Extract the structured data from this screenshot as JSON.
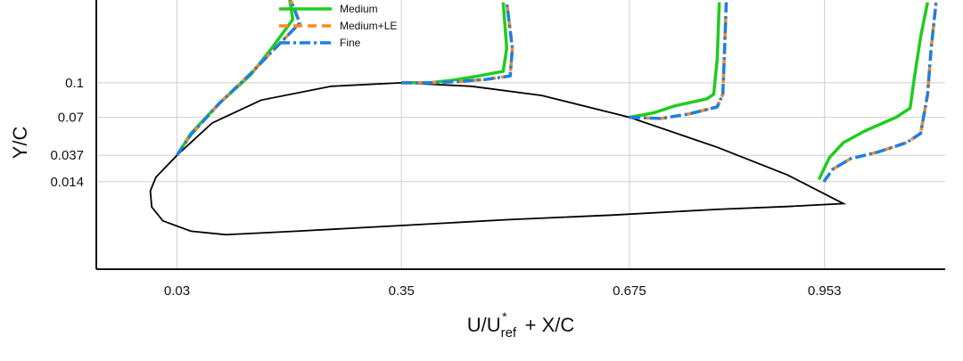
{
  "chart_data": {
    "type": "line",
    "title": "",
    "xlabel": {
      "base": "U/U",
      "sup": "*",
      "sub": "ref",
      "tail": " + X/C"
    },
    "ylabel": "Y/C",
    "xticks": [
      0.03,
      0.35,
      0.675,
      0.953
    ],
    "xtick_labels": [
      "0.03",
      "0.35",
      "0.675",
      "0.953"
    ],
    "yticks": [
      0.1,
      0.07,
      0.037,
      0.014
    ],
    "ytick_labels": [
      "0.1",
      "0.07",
      "0.037",
      "0.014"
    ],
    "xlim": [
      -0.085,
      1.125
    ],
    "ylim": [
      -0.062,
      0.172
    ],
    "grid": true,
    "legend_position": "top-center",
    "airfoil": {
      "color": "#000000",
      "upper": [
        [
          0.03,
          0.037
        ],
        [
          0.0,
          0.018
        ],
        [
          -0.008,
          0.006
        ],
        [
          -0.006,
          -0.008
        ],
        [
          0.01,
          -0.02
        ],
        [
          0.05,
          -0.029
        ],
        [
          0.1,
          -0.032
        ],
        [
          0.2,
          -0.029
        ],
        [
          0.35,
          -0.024
        ],
        [
          0.5,
          -0.019
        ],
        [
          0.65,
          -0.015
        ],
        [
          0.8,
          -0.01
        ],
        [
          0.9,
          -0.0075
        ],
        [
          0.98,
          -0.005
        ]
      ],
      "lower": [
        [
          0.03,
          0.037
        ],
        [
          0.08,
          0.065
        ],
        [
          0.15,
          0.085
        ],
        [
          0.25,
          0.097
        ],
        [
          0.35,
          0.1
        ],
        [
          0.45,
          0.097
        ],
        [
          0.55,
          0.089
        ],
        [
          0.675,
          0.07
        ],
        [
          0.8,
          0.044
        ],
        [
          0.9,
          0.02
        ],
        [
          0.98,
          -0.005
        ]
      ]
    },
    "series": [
      {
        "name": "Medium",
        "color": "#1fcc1f",
        "dash": "solid",
        "profiles": [
          [
            [
              0.03,
              0.037
            ],
            [
              0.05,
              0.056
            ],
            [
              0.09,
              0.082
            ],
            [
              0.135,
              0.107
            ],
            [
              0.165,
              0.13
            ],
            [
              0.195,
              0.155
            ],
            [
              0.19,
              0.175
            ]
          ],
          [
            [
              0.35,
              0.1
            ],
            [
              0.39,
              0.1
            ],
            [
              0.42,
              0.102
            ],
            [
              0.46,
              0.106
            ],
            [
              0.495,
              0.11
            ],
            [
              0.5,
              0.13
            ],
            [
              0.495,
              0.17
            ]
          ],
          [
            [
              0.675,
              0.07
            ],
            [
              0.71,
              0.074
            ],
            [
              0.74,
              0.08
            ],
            [
              0.785,
              0.086
            ],
            [
              0.795,
              0.09
            ],
            [
              0.8,
              0.12
            ],
            [
              0.803,
              0.17
            ]
          ],
          [
            [
              0.945,
              0.016
            ],
            [
              0.96,
              0.035
            ],
            [
              0.98,
              0.048
            ],
            [
              1.01,
              0.058
            ],
            [
              1.055,
              0.07
            ],
            [
              1.075,
              0.078
            ],
            [
              1.08,
              0.1
            ],
            [
              1.09,
              0.14
            ],
            [
              1.1,
              0.17
            ]
          ]
        ]
      },
      {
        "name": "Medium+LE",
        "color": "#ff8a1c",
        "dash": "10,6",
        "profiles": [
          [
            [
              0.03,
              0.037
            ],
            [
              0.05,
              0.055
            ],
            [
              0.09,
              0.082
            ],
            [
              0.135,
              0.108
            ],
            [
              0.17,
              0.13
            ],
            [
              0.205,
              0.152
            ],
            [
              0.19,
              0.175
            ]
          ],
          [
            [
              0.35,
              0.1
            ],
            [
              0.39,
              0.1
            ],
            [
              0.43,
              0.101
            ],
            [
              0.47,
              0.103
            ],
            [
              0.505,
              0.106
            ],
            [
              0.508,
              0.13
            ],
            [
              0.5,
              0.17
            ]
          ],
          [
            [
              0.675,
              0.07
            ],
            [
              0.72,
              0.069
            ],
            [
              0.76,
              0.073
            ],
            [
              0.8,
              0.079
            ],
            [
              0.808,
              0.09
            ],
            [
              0.81,
              0.12
            ],
            [
              0.813,
              0.17
            ]
          ],
          [
            [
              0.952,
              0.014
            ],
            [
              0.965,
              0.025
            ],
            [
              0.99,
              0.034
            ],
            [
              1.03,
              0.04
            ],
            [
              1.07,
              0.048
            ],
            [
              1.09,
              0.056
            ],
            [
              1.1,
              0.09
            ],
            [
              1.105,
              0.13
            ],
            [
              1.112,
              0.17
            ]
          ]
        ]
      },
      {
        "name": "Fine",
        "color": "#1f7fe0",
        "dash": "12,4,3,4",
        "profiles": [
          [
            [
              0.03,
              0.037
            ],
            [
              0.05,
              0.055
            ],
            [
              0.09,
              0.082
            ],
            [
              0.135,
              0.108
            ],
            [
              0.17,
              0.13
            ],
            [
              0.205,
              0.152
            ],
            [
              0.19,
              0.175
            ]
          ],
          [
            [
              0.35,
              0.1
            ],
            [
              0.39,
              0.1
            ],
            [
              0.43,
              0.101
            ],
            [
              0.47,
              0.103
            ],
            [
              0.505,
              0.106
            ],
            [
              0.508,
              0.13
            ],
            [
              0.5,
              0.17
            ]
          ],
          [
            [
              0.675,
              0.07
            ],
            [
              0.72,
              0.069
            ],
            [
              0.76,
              0.073
            ],
            [
              0.8,
              0.079
            ],
            [
              0.808,
              0.09
            ],
            [
              0.81,
              0.12
            ],
            [
              0.813,
              0.17
            ]
          ],
          [
            [
              0.952,
              0.014
            ],
            [
              0.965,
              0.025
            ],
            [
              0.99,
              0.034
            ],
            [
              1.03,
              0.04
            ],
            [
              1.07,
              0.048
            ],
            [
              1.09,
              0.056
            ],
            [
              1.1,
              0.09
            ],
            [
              1.105,
              0.13
            ],
            [
              1.112,
              0.17
            ]
          ]
        ]
      }
    ]
  }
}
